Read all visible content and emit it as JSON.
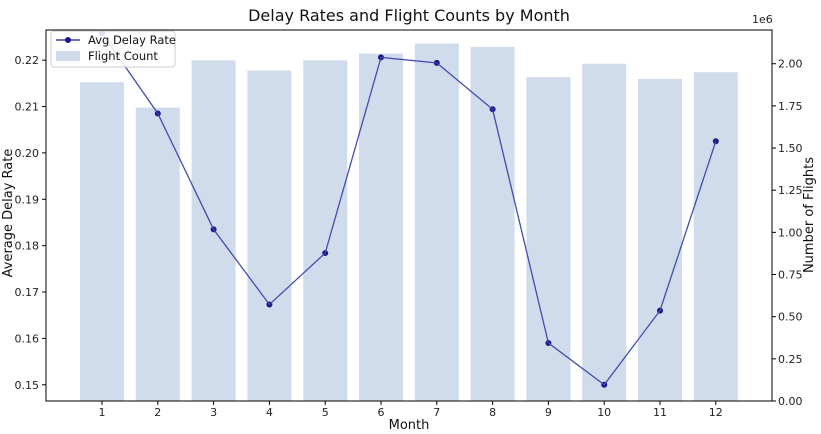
{
  "chart_data": {
    "type": "bar+line",
    "title": "Delay Rates and Flight Counts by Month",
    "xlabel": "Month",
    "ylabel_left": "Average Delay Rate",
    "ylabel_right": "Number of Flights",
    "right_axis_multiplier": "1e6",
    "categories": [
      "1",
      "2",
      "3",
      "4",
      "5",
      "6",
      "7",
      "8",
      "9",
      "10",
      "11",
      "12"
    ],
    "ylim_left": [
      0.1465,
      0.2265
    ],
    "ylim_right": [
      0,
      2.2
    ],
    "yticks_left": [
      "0.15",
      "0.16",
      "0.17",
      "0.18",
      "0.19",
      "0.20",
      "0.21",
      "0.22"
    ],
    "yticks_right": [
      "0.00",
      "0.25",
      "0.50",
      "0.75",
      "1.00",
      "1.25",
      "1.50",
      "1.75",
      "2.00"
    ],
    "series": [
      {
        "name": "Avg Delay Rate",
        "type": "line",
        "axis": "left",
        "color": "#1a1a8c",
        "values": [
          0.2258,
          0.2085,
          0.1835,
          0.1673,
          0.1784,
          0.2206,
          0.2194,
          0.2094,
          0.159,
          0.15,
          0.166,
          0.2025
        ]
      },
      {
        "name": "Flight Count",
        "type": "bar",
        "axis": "right",
        "color": "#b0c4de",
        "values": [
          1.89,
          1.74,
          2.02,
          1.96,
          2.02,
          2.06,
          2.12,
          2.1,
          1.92,
          2.0,
          1.91,
          1.95
        ]
      }
    ],
    "legend_position": "top-left",
    "grid": false
  }
}
